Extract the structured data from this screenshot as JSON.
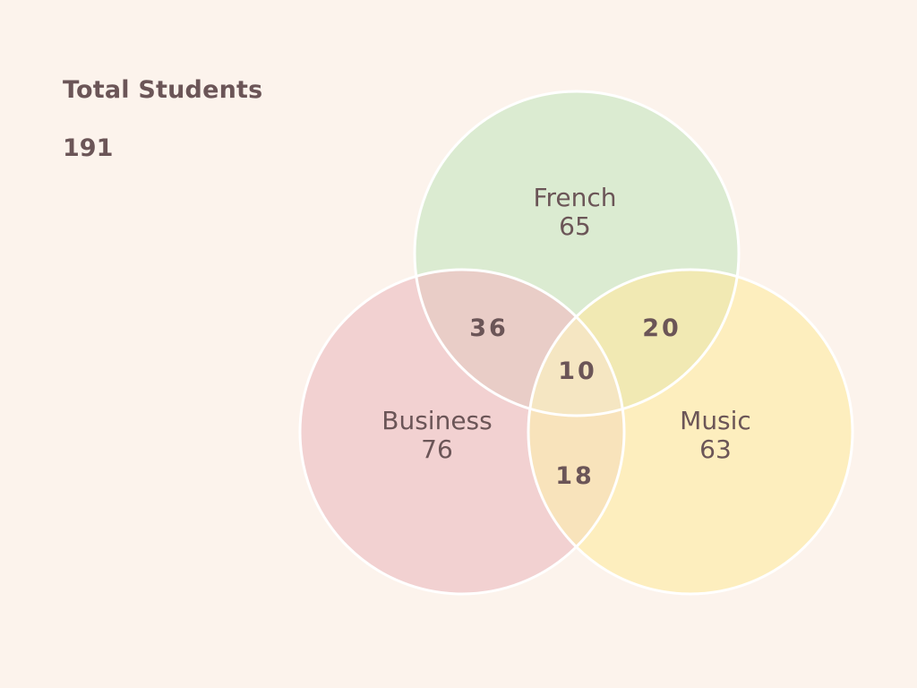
{
  "summary": {
    "title": "Total Students",
    "value": "191"
  },
  "sets": [
    {
      "key": "french",
      "label": "French",
      "count": "65",
      "color": "#dbebd1"
    },
    {
      "key": "business",
      "label": "Business",
      "count": "76",
      "color": "#f2d1d1"
    },
    {
      "key": "music",
      "label": "Music",
      "count": "63",
      "color": "#fdeebe"
    }
  ],
  "intersections": {
    "french_business": "36",
    "french_music": "20",
    "business_music": "18",
    "all_three": "10"
  },
  "colors": {
    "background": "#fcf3ec",
    "text": "#6b5557",
    "outline": "#ffffff",
    "french_business": "#e9cdc7",
    "french_music": "#f1e9b3",
    "business_music": "#f8e3bb",
    "all_three": "#f5e6c2"
  }
}
